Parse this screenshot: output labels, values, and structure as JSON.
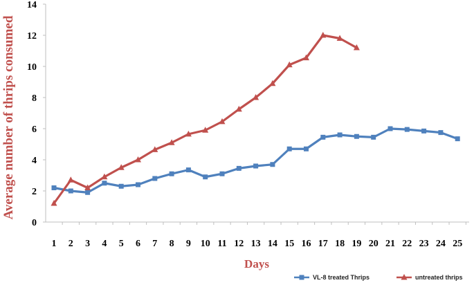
{
  "chart_data": {
    "type": "line",
    "title": "",
    "xlabel": "Days",
    "ylabel": "Average number of thrips consumed",
    "ylim": [
      0,
      14
    ],
    "yticks": [
      0,
      2,
      4,
      6,
      8,
      10,
      12,
      14
    ],
    "x": [
      1,
      2,
      3,
      4,
      5,
      6,
      7,
      8,
      9,
      10,
      11,
      12,
      13,
      14,
      15,
      16,
      17,
      18,
      19,
      20,
      21,
      22,
      23,
      24,
      25
    ],
    "legend_position": "bottom-right",
    "grid": false,
    "series": [
      {
        "name": "VL-8 treated Thrips",
        "color": "#4f81bd",
        "marker": "square",
        "x": [
          1,
          2,
          3,
          4,
          5,
          6,
          7,
          8,
          9,
          10,
          11,
          12,
          13,
          14,
          15,
          16,
          17,
          18,
          19,
          20,
          21,
          22,
          23,
          24,
          25
        ],
        "values": [
          2.2,
          2.0,
          1.9,
          2.5,
          2.3,
          2.4,
          2.8,
          3.1,
          3.35,
          2.9,
          3.1,
          3.45,
          3.6,
          3.7,
          4.7,
          4.7,
          5.45,
          5.6,
          5.5,
          5.45,
          6.0,
          5.95,
          5.85,
          5.75,
          5.35
        ]
      },
      {
        "name": "untreated thrips",
        "color": "#c0504d",
        "marker": "triangle",
        "x": [
          1,
          2,
          3,
          4,
          5,
          6,
          7,
          8,
          9,
          10,
          11,
          12,
          13,
          14,
          15,
          16,
          17,
          18,
          19
        ],
        "values": [
          1.2,
          2.7,
          2.2,
          2.9,
          3.5,
          4.0,
          4.65,
          5.1,
          5.65,
          5.9,
          6.45,
          7.25,
          8.0,
          8.9,
          10.1,
          10.55,
          12.0,
          11.8,
          11.2
        ]
      }
    ]
  }
}
